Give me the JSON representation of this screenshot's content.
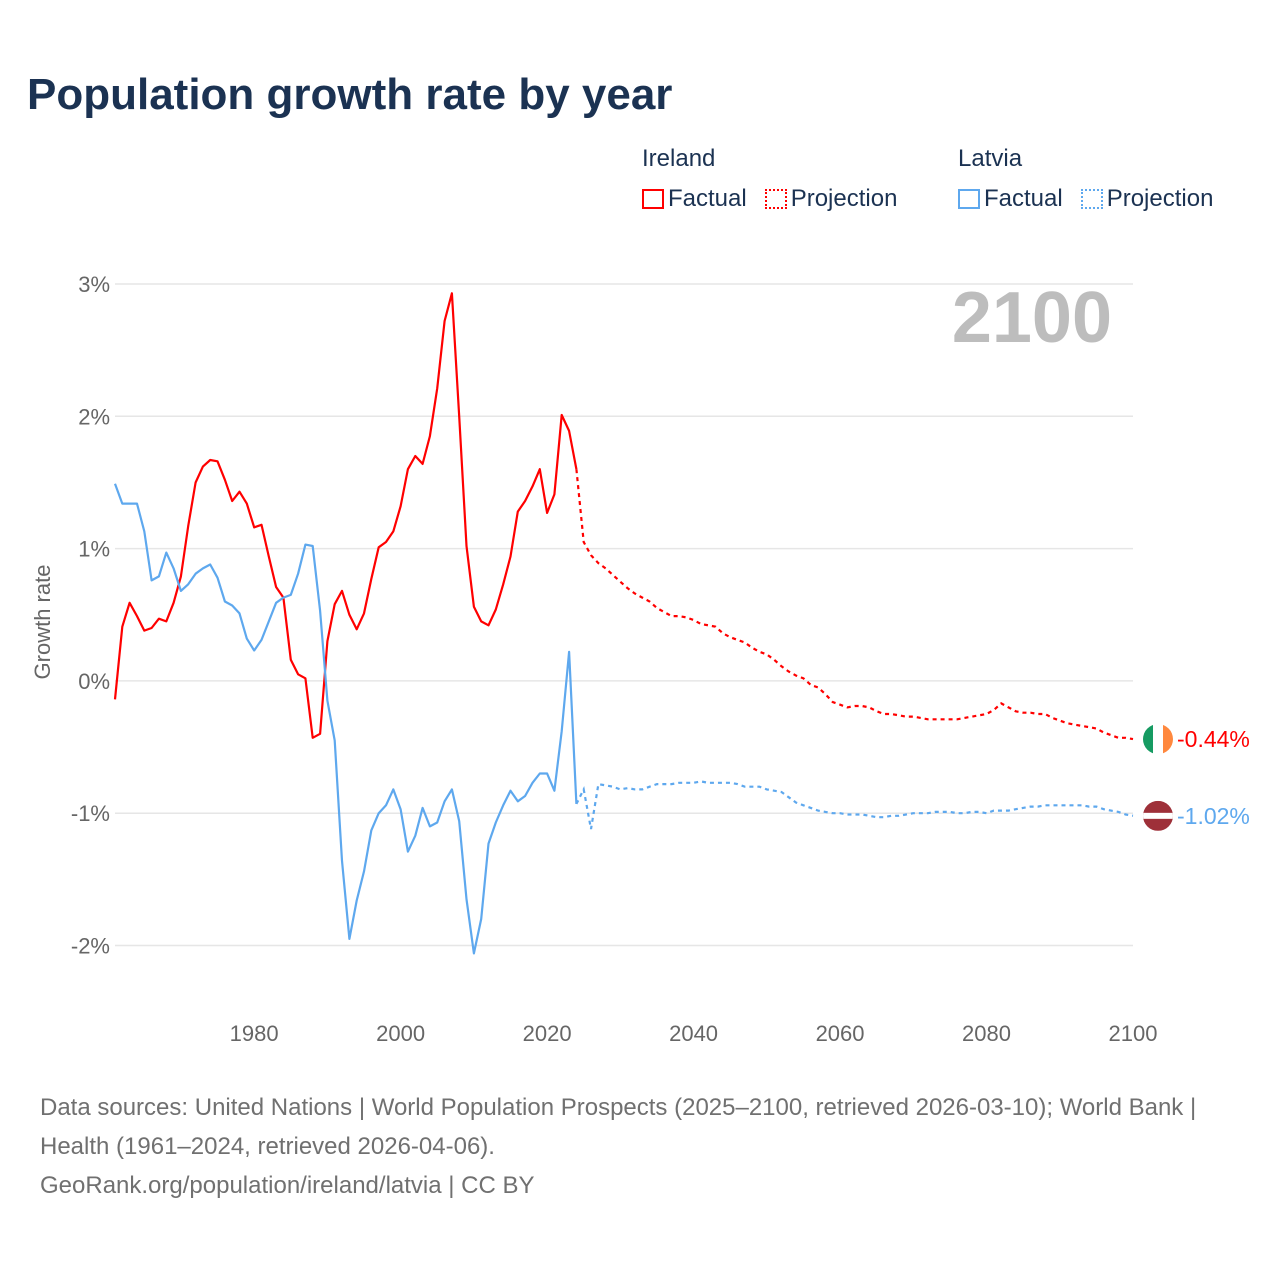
{
  "chart_data": {
    "type": "line",
    "title": "Population growth rate by year",
    "ylabel": "Growth rate",
    "xlabel": "",
    "xlim": [
      1961,
      2100
    ],
    "ylim": [
      -2.5,
      3
    ],
    "yticks": [
      3,
      2,
      1,
      0,
      -1,
      -2
    ],
    "ytick_labels": [
      "3%",
      "2%",
      "1%",
      "0%",
      "-1%",
      "-2%"
    ],
    "xticks": [
      1980,
      2000,
      2020,
      2040,
      2060,
      2080,
      2100
    ],
    "xtick_labels": [
      "1980",
      "2000",
      "2020",
      "2040",
      "2060",
      "2080",
      "2100"
    ],
    "grid": true,
    "year_marker": "2100",
    "legend": {
      "placement": "top-right",
      "groups": [
        {
          "country": "Ireland",
          "factual": "Factual",
          "projection": "Projection"
        },
        {
          "country": "Latvia",
          "factual": "Factual",
          "projection": "Projection"
        }
      ]
    },
    "series": [
      {
        "name": "Ireland",
        "color": "#ff0000",
        "end_label": "-0.44%",
        "factual": {
          "start_year": 1961,
          "values": [
            -0.14,
            0.41,
            0.59,
            0.49,
            0.38,
            0.4,
            0.47,
            0.45,
            0.59,
            0.79,
            1.17,
            1.5,
            1.62,
            1.67,
            1.66,
            1.52,
            1.36,
            1.43,
            1.34,
            1.16,
            1.18,
            0.94,
            0.71,
            0.63,
            0.16,
            0.05,
            0.02,
            -0.43,
            -0.4,
            0.3,
            0.58,
            0.68,
            0.5,
            0.39,
            0.51,
            0.77,
            1.01,
            1.05,
            1.13,
            1.32,
            1.6,
            1.7,
            1.64,
            1.85,
            2.21,
            2.72,
            2.93,
            2.0,
            1.02,
            0.56,
            0.45,
            0.42,
            0.54,
            0.73,
            0.94,
            1.28,
            1.36,
            1.47,
            1.6,
            1.27,
            1.41,
            2.01,
            1.89,
            1.6
          ]
        },
        "projection": {
          "start_year": 2025,
          "values": [
            1.05,
            0.95,
            0.89,
            0.85,
            0.8,
            0.75,
            0.7,
            0.66,
            0.63,
            0.6,
            0.55,
            0.52,
            0.49,
            0.49,
            0.48,
            0.46,
            0.43,
            0.42,
            0.41,
            0.36,
            0.33,
            0.31,
            0.29,
            0.25,
            0.22,
            0.2,
            0.16,
            0.11,
            0.07,
            0.04,
            0.02,
            -0.03,
            -0.05,
            -0.1,
            -0.16,
            -0.18,
            -0.2,
            -0.19,
            -0.19,
            -0.2,
            -0.23,
            -0.25,
            -0.25,
            -0.26,
            -0.27,
            -0.27,
            -0.28,
            -0.29,
            -0.29,
            -0.29,
            -0.29,
            -0.29,
            -0.28,
            -0.27,
            -0.26,
            -0.25,
            -0.22,
            -0.17,
            -0.2,
            -0.23,
            -0.24,
            -0.24,
            -0.25,
            -0.25,
            -0.28,
            -0.3,
            -0.32,
            -0.33,
            -0.34,
            -0.35,
            -0.36,
            -0.39,
            -0.41,
            -0.43,
            -0.43,
            -0.44
          ]
        }
      },
      {
        "name": "Latvia",
        "color": "#5ea8ee",
        "end_label": "-1.02%",
        "factual": {
          "start_year": 1961,
          "values": [
            1.49,
            1.34,
            1.34,
            1.34,
            1.13,
            0.76,
            0.79,
            0.97,
            0.85,
            0.68,
            0.73,
            0.81,
            0.85,
            0.88,
            0.78,
            0.6,
            0.57,
            0.51,
            0.32,
            0.23,
            0.31,
            0.45,
            0.59,
            0.63,
            0.65,
            0.81,
            1.03,
            1.02,
            0.53,
            -0.15,
            -0.45,
            -1.36,
            -1.95,
            -1.66,
            -1.44,
            -1.13,
            -1.0,
            -0.94,
            -0.82,
            -0.97,
            -1.29,
            -1.17,
            -0.96,
            -1.1,
            -1.07,
            -0.91,
            -0.82,
            -1.06,
            -1.65,
            -2.06,
            -1.8,
            -1.23,
            -1.07,
            -0.94,
            -0.83,
            -0.91,
            -0.87,
            -0.77,
            -0.7,
            -0.7,
            -0.83,
            -0.38,
            0.22,
            -0.93
          ]
        },
        "projection": {
          "start_year": 2025,
          "values": [
            -0.82,
            -1.12,
            -0.78,
            -0.79,
            -0.8,
            -0.82,
            -0.81,
            -0.82,
            -0.82,
            -0.8,
            -0.78,
            -0.78,
            -0.78,
            -0.77,
            -0.77,
            -0.77,
            -0.76,
            -0.77,
            -0.77,
            -0.77,
            -0.77,
            -0.78,
            -0.8,
            -0.8,
            -0.8,
            -0.82,
            -0.83,
            -0.84,
            -0.88,
            -0.92,
            -0.94,
            -0.96,
            -0.98,
            -0.99,
            -1.0,
            -1.0,
            -1.01,
            -1.01,
            -1.01,
            -1.02,
            -1.03,
            -1.03,
            -1.02,
            -1.02,
            -1.01,
            -1.0,
            -1.0,
            -1.0,
            -0.99,
            -0.99,
            -0.99,
            -1.0,
            -1.0,
            -0.99,
            -0.99,
            -1.0,
            -0.98,
            -0.98,
            -0.98,
            -0.97,
            -0.96,
            -0.95,
            -0.95,
            -0.94,
            -0.94,
            -0.94,
            -0.94,
            -0.94,
            -0.94,
            -0.95,
            -0.95,
            -0.97,
            -0.98,
            -0.99,
            -1.01,
            -1.02
          ]
        }
      }
    ]
  },
  "footer": {
    "sources": "Data sources: United Nations | World Population Prospects (2025–2100, retrieved 2026-03-10); World Bank | Health (1961–2024, retrieved 2026-04-06).",
    "credit": "GeoRank.org/population/ireland/latvia | CC BY"
  }
}
